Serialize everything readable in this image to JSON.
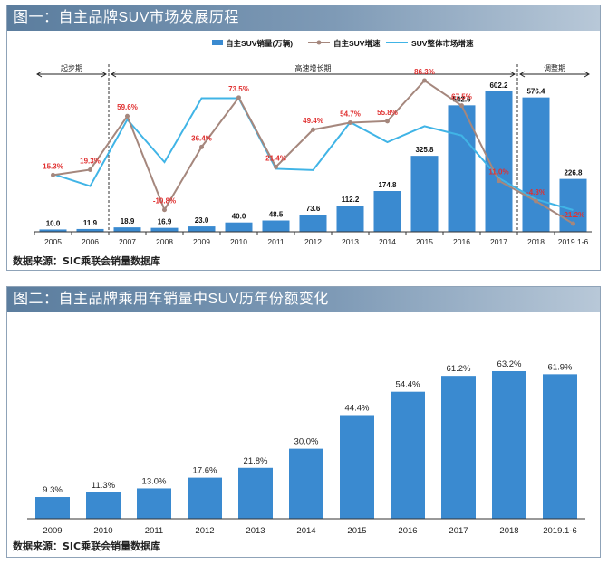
{
  "figure1": {
    "title": "图一：自主品牌SUV市场发展历程",
    "source": "数据来源：SIC乘联会销量数据库",
    "legend": {
      "bar": "自主SUV销量(万辆)",
      "line1": "自主SUV增速",
      "line2": "SUV整体市场增速"
    },
    "phases": [
      {
        "label": "起步期",
        "from": "2005",
        "to": "2006"
      },
      {
        "label": "高速增长期",
        "from": "2007",
        "to": "2017"
      },
      {
        "label": "调整期",
        "from": "2018",
        "to": "2019.1-6"
      }
    ],
    "colors": {
      "bar": "#3a8ad0",
      "line1": "#a5877d",
      "line2": "#40b4e6",
      "growth_label": "#e03030"
    }
  },
  "figure2": {
    "title": "图二：自主品牌乘用车销量中SUV历年份额变化",
    "source": "数据来源：SIC乘联会销量数据库",
    "colors": {
      "bar": "#3a8ad0"
    }
  },
  "chart_data": [
    {
      "type": "bar",
      "categories": [
        "2005",
        "2006",
        "2007",
        "2008",
        "2009",
        "2010",
        "2011",
        "2012",
        "2013",
        "2014",
        "2015",
        "2016",
        "2017",
        "2018",
        "2019.1-6"
      ],
      "series": [
        {
          "name": "自主SUV销量(万辆)",
          "type": "bar",
          "values": [
            10.0,
            11.9,
            18.9,
            16.9,
            23.0,
            40.0,
            48.5,
            73.6,
            112.2,
            174.8,
            325.8,
            542.6,
            602.2,
            576.4,
            226.8
          ],
          "labels": [
            "10.0",
            "11.9",
            "18.9",
            "16.9",
            "23.0",
            "40.0",
            "48.5",
            "73.6",
            "112.2",
            "174.8",
            "325.8",
            "542.6",
            "602.2",
            "576.4",
            "226.8"
          ]
        },
        {
          "name": "自主SUV增速",
          "type": "line",
          "values": [
            15.3,
            19.3,
            59.6,
            -10.8,
            36.4,
            73.5,
            21.4,
            49.4,
            54.7,
            55.8,
            86.3,
            67.5,
            11.0,
            -4.3,
            -21.2
          ],
          "labels": [
            "15.3%",
            "19.3%",
            "59.6%",
            "-10.8%",
            "36.4%",
            "73.5%",
            "21.4%",
            "49.4%",
            "54.7%",
            "55.8%",
            "86.3%",
            "67.5%",
            "11.0%",
            "-4.3%",
            "-21.2%"
          ]
        },
        {
          "name": "SUV整体市场增速",
          "type": "line",
          "values": [
            16,
            7,
            57,
            25,
            73,
            73,
            20,
            19,
            55,
            40,
            52,
            45,
            13,
            -3,
            -11
          ]
        }
      ],
      "xlabel": "",
      "ylabel": "",
      "legend_position": "top-right"
    },
    {
      "type": "bar",
      "categories": [
        "2009",
        "2010",
        "2011",
        "2012",
        "2013",
        "2014",
        "2015",
        "2016",
        "2017",
        "2018",
        "2019.1-6"
      ],
      "values": [
        9.3,
        11.3,
        13.0,
        17.6,
        21.8,
        30.0,
        44.4,
        54.4,
        61.2,
        63.2,
        61.9
      ],
      "labels": [
        "9.3%",
        "11.3%",
        "13.0%",
        "17.6%",
        "21.8%",
        "30.0%",
        "44.4%",
        "54.4%",
        "61.2%",
        "63.2%",
        "61.9%"
      ],
      "xlabel": "",
      "ylabel": "",
      "ylim": [
        0,
        70
      ]
    }
  ]
}
